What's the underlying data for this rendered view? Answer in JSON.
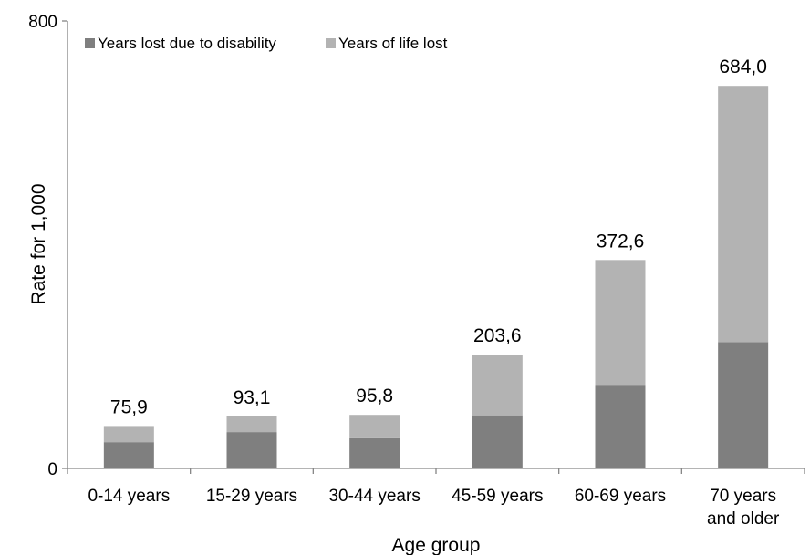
{
  "chart_data": {
    "type": "bar",
    "stacked": true,
    "categories": [
      [
        "0-14 years"
      ],
      [
        "15-29 years"
      ],
      [
        "30-44 years"
      ],
      [
        "45-59 years"
      ],
      [
        "60-69 years"
      ],
      [
        "70 years",
        "and older"
      ]
    ],
    "series": [
      {
        "name": "Years lost due to disability",
        "color": "#7f7f7f",
        "values": [
          47,
          65,
          54,
          95,
          148,
          226
        ]
      },
      {
        "name": "Years of life lost",
        "color": "#b3b3b3",
        "values": [
          28.9,
          28.1,
          41.8,
          108.6,
          224.6,
          458.0
        ]
      }
    ],
    "totals": [
      "75,9",
      "93,1",
      "95,8",
      "203,6",
      "372,6",
      "684,0"
    ],
    "xlabel": "Age group",
    "ylabel": "Rate for 1,000",
    "ylim": [
      0,
      800
    ],
    "yticks": [
      "0",
      "800"
    ],
    "legend": "top-left",
    "grid": false
  }
}
